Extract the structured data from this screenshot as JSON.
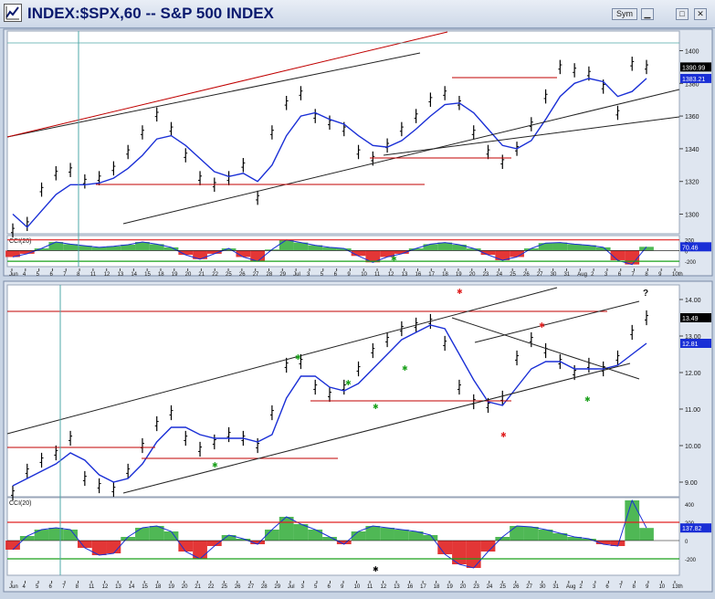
{
  "window": {
    "title": "INDEX:$SPX,60 -- S&P 500 INDEX",
    "sym_label": "Sym",
    "controls": [
      "minimize",
      "maximize",
      "close"
    ]
  },
  "x_axis_labels": [
    "Jun",
    "4",
    "5",
    "6",
    "7",
    "8",
    "11",
    "12",
    "13",
    "14",
    "15",
    "18",
    "19",
    "20",
    "21",
    "22",
    "25",
    "26",
    "27",
    "28",
    "29",
    "Jul",
    "3",
    "5",
    "6",
    "9",
    "10",
    "11",
    "12",
    "13",
    "16",
    "17",
    "18",
    "19",
    "20",
    "23",
    "24",
    "25",
    "26",
    "27",
    "30",
    "31",
    "Aug",
    "2",
    "3",
    "6",
    "7",
    "8",
    "9",
    "10th"
  ],
  "x_axis_labels_bottom": [
    "Jun",
    "4",
    "5",
    "6",
    "7",
    "8",
    "11",
    "12",
    "13",
    "14",
    "15",
    "18",
    "19",
    "20",
    "21",
    "22",
    "25",
    "26",
    "27",
    "28",
    "29",
    "Jul",
    "3",
    "5",
    "6",
    "9",
    "10",
    "11",
    "12",
    "13",
    "16",
    "17",
    "18",
    "19",
    "20",
    "23",
    "24",
    "25",
    "26",
    "27",
    "30",
    "31",
    "Aug",
    "2",
    "3",
    "6",
    "7",
    "8",
    "9",
    "10",
    "13th"
  ],
  "chart_data": [
    {
      "type": "line",
      "name": "price-top",
      "title": "",
      "yticks": [
        1300,
        1320,
        1340,
        1360,
        1380,
        1400
      ],
      "ylim": [
        1288,
        1412
      ],
      "x": [
        0,
        1,
        2,
        3,
        4,
        5,
        6,
        7,
        8,
        9,
        10,
        11,
        12,
        13,
        14,
        15,
        16,
        17,
        18,
        19,
        20,
        21,
        22,
        23,
        24,
        25,
        26,
        27,
        28,
        29,
        30,
        31,
        32,
        33,
        34,
        35,
        36,
        37,
        38,
        39,
        40,
        41,
        42,
        43,
        44
      ],
      "series": [
        {
          "values": [
            1290,
            1294,
            1315,
            1325,
            1327,
            1320,
            1322,
            1328,
            1338,
            1350,
            1361,
            1352,
            1336,
            1322,
            1318,
            1322,
            1330,
            1310,
            1350,
            1368,
            1374,
            1360,
            1356,
            1352,
            1338,
            1334,
            1342,
            1352,
            1360,
            1370,
            1374,
            1368,
            1350,
            1338,
            1332,
            1340,
            1355,
            1372,
            1390,
            1388,
            1386,
            1378,
            1362,
            1392,
            1390
          ]
        },
        {
          "values": [
            1300,
            1292,
            1302,
            1312,
            1318,
            1318,
            1319,
            1322,
            1328,
            1336,
            1346,
            1348,
            1342,
            1334,
            1326,
            1323,
            1325,
            1320,
            1330,
            1348,
            1360,
            1362,
            1358,
            1355,
            1348,
            1342,
            1341,
            1345,
            1352,
            1360,
            1367,
            1368,
            1362,
            1352,
            1342,
            1340,
            1345,
            1358,
            1372,
            1380,
            1383,
            1381,
            1372,
            1375,
            1383
          ]
        }
      ],
      "price_tag": "1390.99",
      "ma_tag": "1383.21"
    },
    {
      "type": "area",
      "name": "cci-top",
      "title": "CCI(20)",
      "yticks": [
        200,
        0,
        -200
      ],
      "ylim": [
        -300,
        280
      ],
      "values": [
        -120,
        -60,
        40,
        160,
        120,
        90,
        60,
        80,
        110,
        160,
        120,
        60,
        -80,
        -160,
        -60,
        40,
        -120,
        -200,
        20,
        200,
        150,
        100,
        60,
        40,
        -100,
        -220,
        -120,
        -60,
        40,
        120,
        150,
        110,
        40,
        -80,
        -180,
        -120,
        40,
        140,
        150,
        120,
        100,
        60,
        -180,
        -260,
        70
      ],
      "tag": "70.46"
    },
    {
      "type": "line",
      "name": "price-bottom",
      "title": "",
      "yticks": [
        9.0,
        10.0,
        11.0,
        12.0,
        13.0,
        14.0
      ],
      "ylim": [
        8.6,
        14.4
      ],
      "x": [
        0,
        1,
        2,
        3,
        4,
        5,
        6,
        7,
        8,
        9,
        10,
        11,
        12,
        13,
        14,
        15,
        16,
        17,
        18,
        19,
        20,
        21,
        22,
        23,
        24,
        25,
        26,
        27,
        28,
        29,
        30,
        31,
        32,
        33,
        34,
        35,
        36,
        37,
        38,
        39,
        40,
        41,
        42,
        43,
        44
      ],
      "series": [
        {
          "values": [
            8.7,
            9.3,
            9.6,
            9.8,
            10.2,
            9.1,
            8.9,
            8.8,
            9.3,
            10.0,
            10.6,
            10.9,
            10.2,
            9.9,
            10.1,
            10.3,
            10.2,
            10.0,
            10.9,
            12.2,
            12.3,
            11.6,
            11.4,
            11.6,
            12.1,
            12.6,
            12.9,
            13.2,
            13.3,
            13.4,
            12.8,
            11.6,
            11.2,
            11.1,
            11.3,
            12.4,
            12.9,
            12.6,
            12.3,
            12.0,
            12.2,
            12.1,
            12.4,
            13.1,
            13.5
          ]
        },
        {
          "values": [
            8.9,
            9.1,
            9.3,
            9.5,
            9.8,
            9.6,
            9.2,
            9.0,
            9.1,
            9.5,
            10.1,
            10.5,
            10.5,
            10.3,
            10.2,
            10.2,
            10.2,
            10.1,
            10.3,
            11.3,
            11.9,
            11.9,
            11.6,
            11.5,
            11.7,
            12.1,
            12.5,
            12.9,
            13.1,
            13.3,
            13.2,
            12.5,
            11.8,
            11.2,
            11.1,
            11.6,
            12.1,
            12.3,
            12.3,
            12.1,
            12.1,
            12.1,
            12.2,
            12.5,
            12.8
          ]
        }
      ],
      "price_tag": "13.49",
      "ma_tag": "12.81",
      "question_mark": "?"
    },
    {
      "type": "area",
      "name": "cci-bottom",
      "title": "CCI(20)",
      "yticks": [
        400,
        200,
        0,
        -200
      ],
      "ylim": [
        -380,
        470
      ],
      "values": [
        -100,
        50,
        120,
        140,
        120,
        -80,
        -160,
        -140,
        40,
        140,
        160,
        100,
        -120,
        -200,
        -60,
        60,
        20,
        -40,
        120,
        260,
        180,
        120,
        40,
        -40,
        100,
        160,
        140,
        120,
        100,
        60,
        -150,
        -260,
        -300,
        -120,
        40,
        160,
        150,
        120,
        80,
        40,
        20,
        -40,
        -60,
        440,
        138
      ],
      "tag": "137.82"
    }
  ]
}
